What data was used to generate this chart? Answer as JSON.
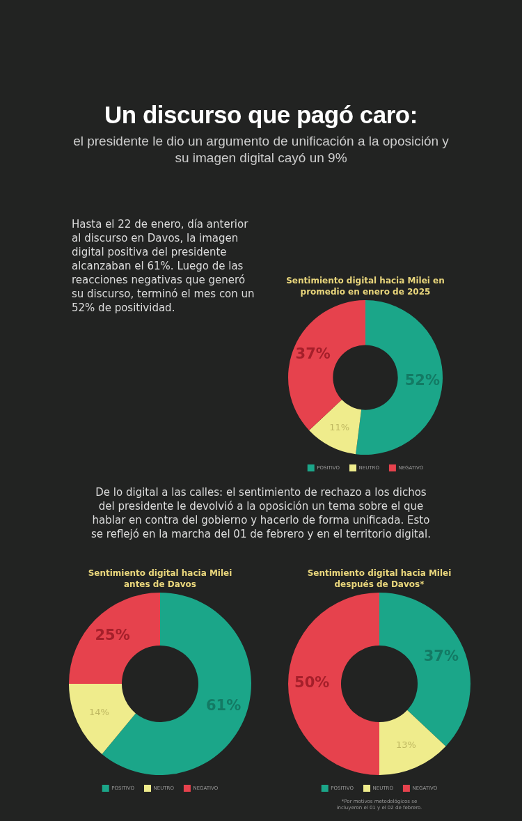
{
  "chart_data": [
    {
      "type": "other",
      "title": "Un discurso que pagó caro:",
      "subtitle": "el presidente le dio un argumento de unificación a la oposición y su imagen digital cayó un 9%",
      "annotations": [
        "Hasta el 22 de enero, día anterior al discurso en Davos, la imagen digital positiva del presidente alcanzaban el 61%. Luego de las reacciones negativas que generó su discurso, terminó el mes con un 52% de positividad."
      ]
    },
    {
      "type": "donut",
      "title": "Sentimiento digital hacia Milei en promedio en enero de 2025",
      "categories": [
        "POSITIVO",
        "NEUTRO",
        "NEGATIVO"
      ],
      "values": [
        52,
        11,
        37
      ],
      "value_labels": [
        "52%",
        "11%",
        "37%"
      ],
      "colors": [
        "#1ba689",
        "#efec8c",
        "#e6424d"
      ],
      "legend": "bottom"
    },
    {
      "type": "other",
      "annotations": [
        "De lo digital a las calles: el sentimiento de rechazo a los dichos del presidente le devolvió a la oposición un tema sobre el que hablar en contra del gobierno y hacerlo de forma unificada. Esto se reflejó en la marcha del 01 de febrero y en el territorio digital."
      ]
    },
    {
      "type": "donut",
      "title": "Sentimiento digital hacia Milei antes de Davos",
      "categories": [
        "POSITIVO",
        "NEUTRO",
        "NEGATIVO"
      ],
      "values": [
        61,
        14,
        25
      ],
      "value_labels": [
        "61%",
        "14%",
        "25%"
      ],
      "colors": [
        "#1ba689",
        "#efec8c",
        "#e6424d"
      ],
      "legend": "bottom"
    },
    {
      "type": "donut",
      "title": "Sentimiento digital hacia Milei después de Davos*",
      "categories": [
        "POSITIVO",
        "NEUTRO",
        "NEGATIVO"
      ],
      "values": [
        37,
        13,
        50
      ],
      "value_labels": [
        "37%",
        "13%",
        "50%"
      ],
      "colors": [
        "#1ba689",
        "#efec8c",
        "#e6424d"
      ],
      "legend": "bottom",
      "annotations": [
        "*Por motivos metodológicos se incluyeron el 01 y el 02 de febrero."
      ]
    }
  ]
}
